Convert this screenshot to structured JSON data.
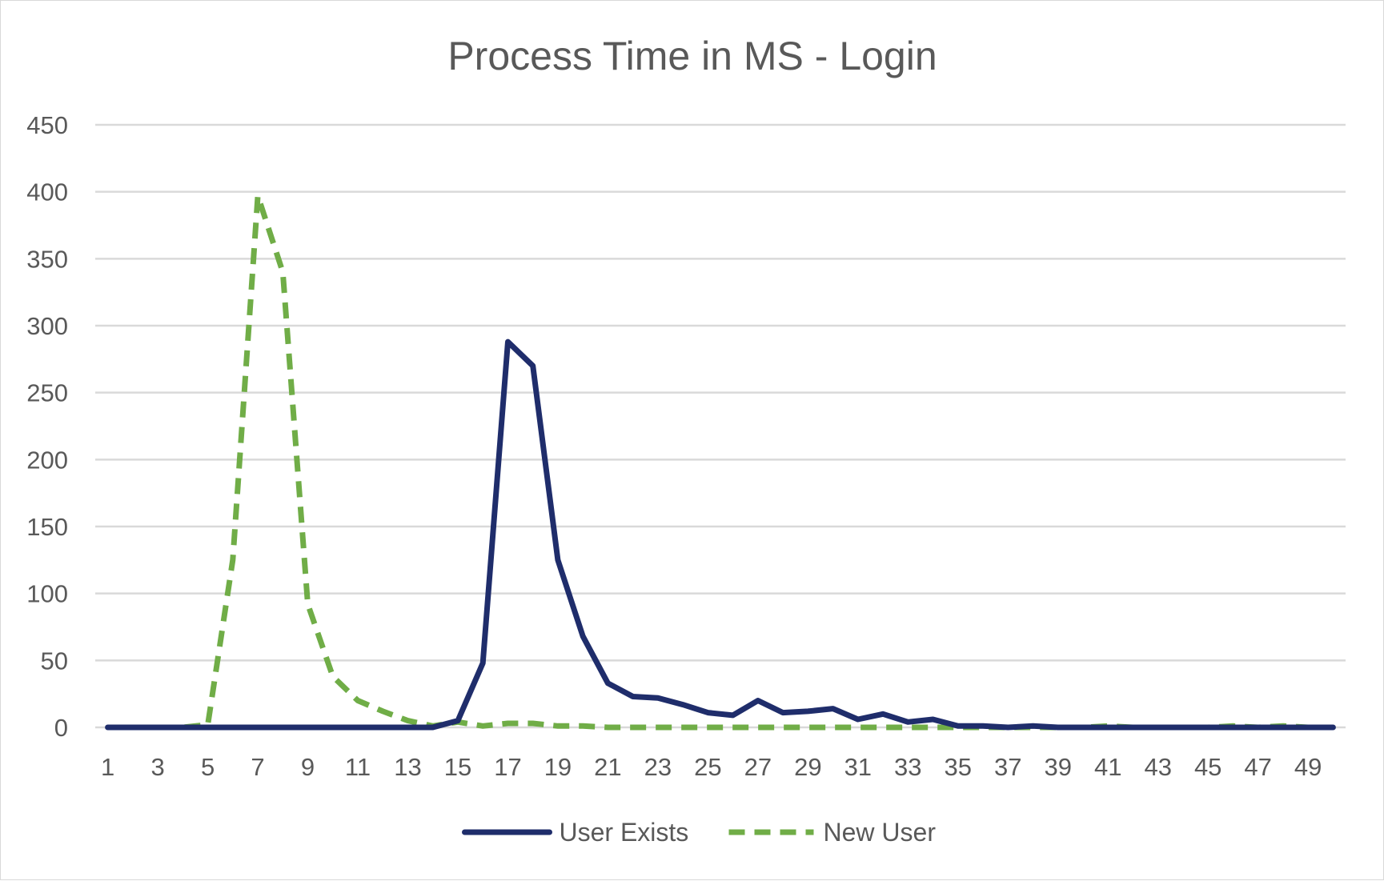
{
  "chart_data": {
    "type": "line",
    "title": "Process Time in MS - Login",
    "xlabel": "",
    "ylabel": "",
    "ylim": [
      0,
      450
    ],
    "yticks": [
      0,
      50,
      100,
      150,
      200,
      250,
      300,
      350,
      400,
      450
    ],
    "x": [
      1,
      2,
      3,
      4,
      5,
      6,
      7,
      8,
      9,
      10,
      11,
      12,
      13,
      14,
      15,
      16,
      17,
      18,
      19,
      20,
      21,
      22,
      23,
      24,
      25,
      26,
      27,
      28,
      29,
      30,
      31,
      32,
      33,
      34,
      35,
      36,
      37,
      38,
      39,
      40,
      41,
      42,
      43,
      44,
      45,
      46,
      47,
      48,
      49,
      50
    ],
    "xtick_labels": [
      "1",
      "3",
      "5",
      "7",
      "9",
      "11",
      "13",
      "15",
      "17",
      "19",
      "21",
      "23",
      "25",
      "27",
      "29",
      "31",
      "33",
      "35",
      "37",
      "39",
      "41",
      "43",
      "45",
      "47",
      "49"
    ],
    "grid": true,
    "legend_position": "bottom",
    "series": [
      {
        "name": "User Exists",
        "color": "#1f2d6b",
        "style": "solid",
        "values": [
          0,
          0,
          0,
          0,
          0,
          0,
          0,
          0,
          0,
          0,
          0,
          0,
          0,
          0,
          5,
          48,
          288,
          270,
          125,
          68,
          33,
          23,
          22,
          17,
          11,
          9,
          20,
          11,
          12,
          14,
          6,
          10,
          4,
          6,
          1,
          1,
          0,
          1,
          0,
          0,
          0,
          0,
          0,
          0,
          0,
          0,
          0,
          0,
          0,
          0
        ]
      },
      {
        "name": "New User",
        "color": "#70ad47",
        "style": "dashed",
        "values": [
          0,
          0,
          0,
          0,
          2,
          125,
          397,
          340,
          92,
          38,
          20,
          12,
          5,
          1,
          4,
          1,
          3,
          3,
          1,
          1,
          0,
          0,
          0,
          0,
          0,
          0,
          0,
          0,
          0,
          0,
          0,
          0,
          0,
          0,
          0,
          0,
          0,
          0,
          0,
          0,
          1,
          0,
          0,
          0,
          0,
          1,
          0,
          1,
          0,
          0
        ]
      }
    ]
  }
}
